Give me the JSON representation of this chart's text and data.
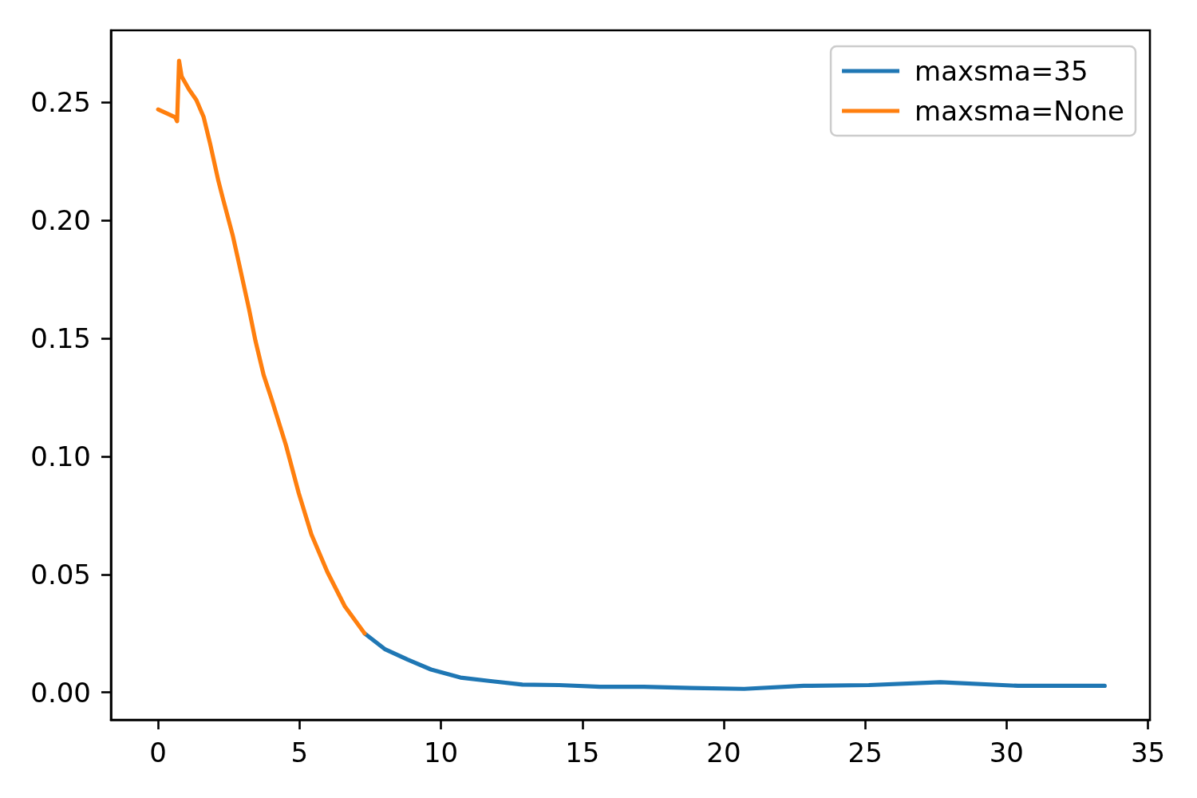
{
  "chart_data": {
    "type": "line",
    "series": [
      {
        "name": "maxsma=35",
        "color": "#1f77b4",
        "x": [
          7.3,
          8.01,
          8.81,
          9.65,
          10.69,
          11.82,
          12.88,
          14.18,
          15.63,
          17.17,
          18.85,
          20.72,
          22.83,
          25.13,
          27.66,
          30.41,
          33.47
        ],
        "values": [
          0.025,
          0.0184,
          0.014,
          0.0097,
          0.0063,
          0.0047,
          0.0033,
          0.0031,
          0.0024,
          0.0024,
          0.0019,
          0.0015,
          0.0028,
          0.0031,
          0.0043,
          0.0028,
          0.0028
        ]
      },
      {
        "name": "maxsma=None",
        "color": "#ff7f0e",
        "x": [
          0,
          0.6,
          0.67,
          0.74,
          0.83,
          1.09,
          1.35,
          1.61,
          1.84,
          2.13,
          2.3,
          2.64,
          2.88,
          3.21,
          3.44,
          3.73,
          4.01,
          4.52,
          4.97,
          5.42,
          5.98,
          6.6,
          7.3
        ],
        "values": [
          0.247,
          0.2437,
          0.242,
          0.2676,
          0.261,
          0.2555,
          0.251,
          0.2437,
          0.2324,
          0.2167,
          0.2088,
          0.1935,
          0.1806,
          0.1626,
          0.149,
          0.1345,
          0.1243,
          0.1047,
          0.0845,
          0.0669,
          0.0511,
          0.0365,
          0.025
        ]
      }
    ],
    "xlim": [
      -1.67,
      35.07
    ],
    "xticks": [
      0,
      5,
      10,
      15,
      20,
      25,
      30,
      35
    ],
    "ylim": [
      -0.0116,
      0.2805
    ],
    "yticks": [
      {
        "value": 0,
        "label": "0.00"
      },
      {
        "value": 0.05,
        "label": "0.05"
      },
      {
        "value": 0.1,
        "label": "0.10"
      },
      {
        "value": 0.15,
        "label": "0.15"
      },
      {
        "value": 0.2,
        "label": "0.20"
      },
      {
        "value": 0.25,
        "label": "0.25"
      }
    ],
    "grid": false,
    "legend": "top right",
    "line_style": "solid"
  }
}
